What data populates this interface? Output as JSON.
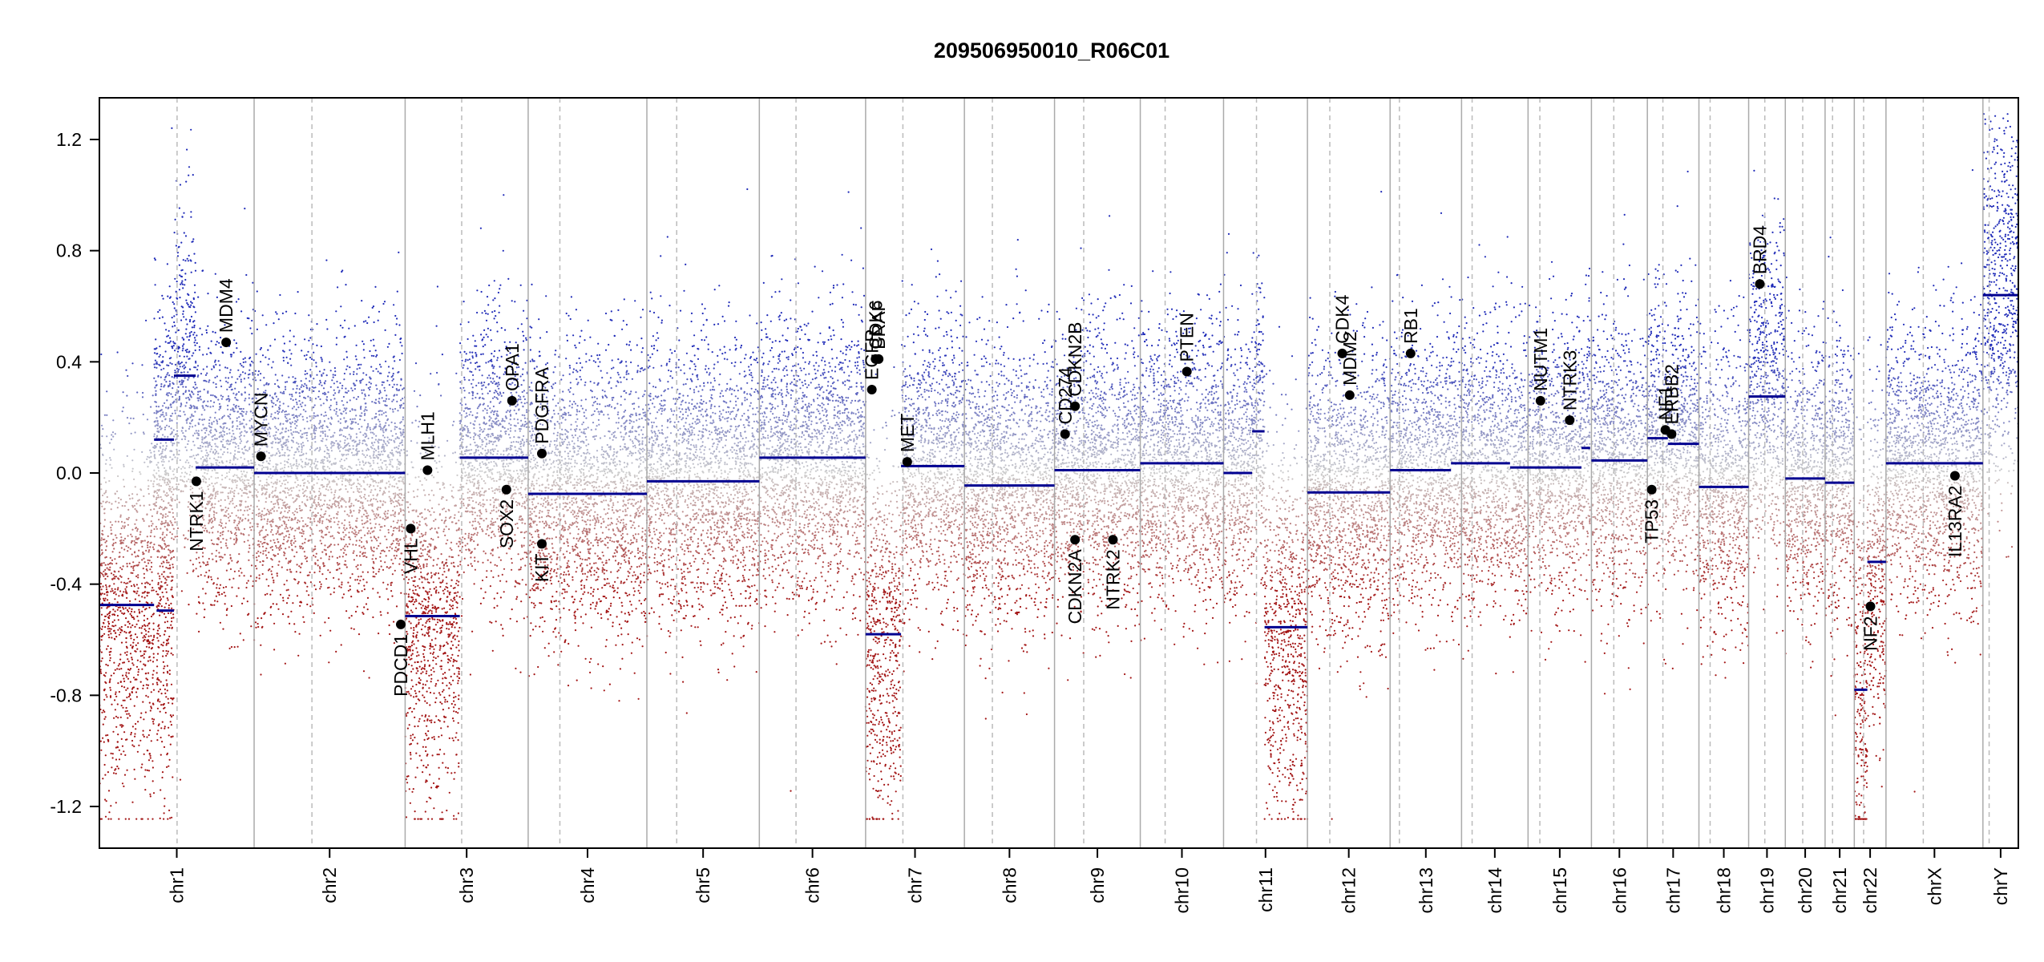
{
  "chart_data": {
    "type": "scatter",
    "title": "209506950010_R06C01",
    "ylim": [
      -1.35,
      1.35
    ],
    "yticks": [
      -1.2,
      -0.8,
      -0.4,
      0.0,
      0.4,
      0.8,
      1.2
    ],
    "ytick_labels": [
      "-1.2",
      "-0.8",
      "-0.4",
      "0.0",
      "0.4",
      "0.8",
      "1.2"
    ],
    "grid": false,
    "colors": {
      "gain": "#1f2bb8",
      "loss": "#a31515",
      "segment": "#000090",
      "separator": "#aaaaaa",
      "centromere": "#bbbbbb",
      "gene_point": "#000000"
    },
    "chromosomes": [
      {
        "name": "chr1",
        "span": [
          0,
          249
        ],
        "centromere": 125
      },
      {
        "name": "chr2",
        "span": [
          249,
          492
        ],
        "centromere": 342
      },
      {
        "name": "chr3",
        "span": [
          492,
          690
        ],
        "centromere": 583
      },
      {
        "name": "chr4",
        "span": [
          690,
          881
        ],
        "centromere": 741
      },
      {
        "name": "chr5",
        "span": [
          881,
          1062
        ],
        "centromere": 929
      },
      {
        "name": "chr6",
        "span": [
          1062,
          1233
        ],
        "centromere": 1121
      },
      {
        "name": "chr7",
        "span": [
          1233,
          1392
        ],
        "centromere": 1293
      },
      {
        "name": "chr8",
        "span": [
          1392,
          1537
        ],
        "centromere": 1437
      },
      {
        "name": "chr9",
        "span": [
          1537,
          1675
        ],
        "centromere": 1584
      },
      {
        "name": "chr10",
        "span": [
          1675,
          1809
        ],
        "centromere": 1715
      },
      {
        "name": "chr11",
        "span": [
          1809,
          1944
        ],
        "centromere": 1862
      },
      {
        "name": "chr12",
        "span": [
          1944,
          2077
        ],
        "centromere": 1980
      },
      {
        "name": "chr13",
        "span": [
          2077,
          2192
        ],
        "centromere": 2092
      },
      {
        "name": "chr14",
        "span": [
          2192,
          2299
        ],
        "centromere": 2209
      },
      {
        "name": "chr15",
        "span": [
          2299,
          2401
        ],
        "centromere": 2318
      },
      {
        "name": "chr16",
        "span": [
          2401,
          2491
        ],
        "centromere": 2437
      },
      {
        "name": "chr17",
        "span": [
          2491,
          2574
        ],
        "centromere": 2516
      },
      {
        "name": "chr18",
        "span": [
          2574,
          2654
        ],
        "centromere": 2592
      },
      {
        "name": "chr19",
        "span": [
          2654,
          2713
        ],
        "centromere": 2680
      },
      {
        "name": "chr20",
        "span": [
          2713,
          2777
        ],
        "centromere": 2741
      },
      {
        "name": "chr21",
        "span": [
          2777,
          2824
        ],
        "centromere": 2789
      },
      {
        "name": "chr22",
        "span": [
          2824,
          2875
        ],
        "centromere": 2839
      },
      {
        "name": "chrX",
        "span": [
          2875,
          3031
        ],
        "centromere": 2935
      },
      {
        "name": "chrY",
        "span": [
          3031,
          3088
        ],
        "centromere": 3041
      }
    ],
    "segments": [
      {
        "x": [
          0,
          88
        ],
        "y": -0.475
      },
      {
        "x": [
          88,
          120
        ],
        "y": 0.12
      },
      {
        "x": [
          92,
          120
        ],
        "y": -0.495
      },
      {
        "x": [
          120,
          155
        ],
        "y": 0.35
      },
      {
        "x": [
          155,
          249
        ],
        "y": 0.02
      },
      {
        "x": [
          249,
          492
        ],
        "y": 0.0
      },
      {
        "x": [
          492,
          580
        ],
        "y": -0.515
      },
      {
        "x": [
          580,
          690
        ],
        "y": 0.055
      },
      {
        "x": [
          690,
          881
        ],
        "y": -0.075
      },
      {
        "x": [
          881,
          1062
        ],
        "y": -0.03
      },
      {
        "x": [
          1062,
          1233
        ],
        "y": 0.055
      },
      {
        "x": [
          1233,
          1290
        ],
        "y": -0.58
      },
      {
        "x": [
          1290,
          1392
        ],
        "y": 0.025
      },
      {
        "x": [
          1392,
          1537
        ],
        "y": -0.045
      },
      {
        "x": [
          1537,
          1675
        ],
        "y": 0.01
      },
      {
        "x": [
          1675,
          1809
        ],
        "y": 0.035
      },
      {
        "x": [
          1809,
          1855
        ],
        "y": 0.0
      },
      {
        "x": [
          1855,
          1875
        ],
        "y": 0.15
      },
      {
        "x": [
          1875,
          1944
        ],
        "y": -0.555
      },
      {
        "x": [
          1944,
          2077
        ],
        "y": -0.07
      },
      {
        "x": [
          2077,
          2175
        ],
        "y": 0.01
      },
      {
        "x": [
          2175,
          2270
        ],
        "y": 0.035
      },
      {
        "x": [
          2270,
          2385
        ],
        "y": 0.02
      },
      {
        "x": [
          2385,
          2399
        ],
        "y": 0.09
      },
      {
        "x": [
          2401,
          2491
        ],
        "y": 0.045
      },
      {
        "x": [
          2491,
          2524
        ],
        "y": 0.125
      },
      {
        "x": [
          2524,
          2574
        ],
        "y": 0.105
      },
      {
        "x": [
          2574,
          2654
        ],
        "y": -0.05
      },
      {
        "x": [
          2654,
          2713
        ],
        "y": 0.275
      },
      {
        "x": [
          2713,
          2777
        ],
        "y": -0.02
      },
      {
        "x": [
          2777,
          2824
        ],
        "y": -0.035
      },
      {
        "x": [
          2824,
          2845
        ],
        "y": -0.78
      },
      {
        "x": [
          2845,
          2875
        ],
        "y": -0.32
      },
      {
        "x": [
          2875,
          3031
        ],
        "y": 0.035
      },
      {
        "x": [
          3031,
          3088
        ],
        "y": 0.64
      }
    ],
    "genes": [
      {
        "name": "MDM4",
        "x": 204,
        "y": 0.47,
        "label_side": "above"
      },
      {
        "name": "MYCN",
        "x": 260,
        "y": 0.06,
        "label_side": "above"
      },
      {
        "name": "NTRK1",
        "x": 156,
        "y": -0.03,
        "label_side": "below"
      },
      {
        "name": "MLH1",
        "x": 528,
        "y": 0.01,
        "label_side": "above"
      },
      {
        "name": "VHL",
        "x": 501,
        "y": -0.2,
        "label_side": "below"
      },
      {
        "name": "PDCD1",
        "x": 485,
        "y": -0.545,
        "label_side": "below"
      },
      {
        "name": "OPA1",
        "x": 664,
        "y": 0.26,
        "label_side": "above"
      },
      {
        "name": "SOX2",
        "x": 655,
        "y": -0.06,
        "label_side": "below"
      },
      {
        "name": "PDGFRA",
        "x": 712,
        "y": 0.07,
        "label_side": "above"
      },
      {
        "name": "KIT",
        "x": 712,
        "y": -0.255,
        "label_side": "below"
      },
      {
        "name": "EGFR",
        "x": 1243,
        "y": 0.3,
        "label_side": "above"
      },
      {
        "name": "CDK6",
        "x": 1249,
        "y": 0.41,
        "label_side": "above"
      },
      {
        "name": "BRAF",
        "x": 1254,
        "y": 0.41,
        "label_side": "above"
      },
      {
        "name": "MET",
        "x": 1300,
        "y": 0.04,
        "label_side": "above"
      },
      {
        "name": "CD274",
        "x": 1554,
        "y": 0.14,
        "label_side": "above"
      },
      {
        "name": "CDKN2B",
        "x": 1570,
        "y": 0.24,
        "label_side": "above"
      },
      {
        "name": "CDKN2A",
        "x": 1570,
        "y": -0.24,
        "label_side": "below"
      },
      {
        "name": "NTRK2",
        "x": 1631,
        "y": -0.24,
        "label_side": "below"
      },
      {
        "name": "PTEN",
        "x": 1750,
        "y": 0.365,
        "label_side": "above"
      },
      {
        "name": "MDM2",
        "x": 2012,
        "y": 0.28,
        "label_side": "above"
      },
      {
        "name": "CDK4",
        "x": 2000,
        "y": 0.43,
        "label_side": "above"
      },
      {
        "name": "RB1",
        "x": 2110,
        "y": 0.43,
        "label_side": "above"
      },
      {
        "name": "NUTM1",
        "x": 2319,
        "y": 0.26,
        "label_side": "above"
      },
      {
        "name": "NTRK3",
        "x": 2366,
        "y": 0.19,
        "label_side": "above"
      },
      {
        "name": "TP53",
        "x": 2498,
        "y": -0.06,
        "label_side": "below"
      },
      {
        "name": "NF1",
        "x": 2520,
        "y": 0.155,
        "label_side": "above"
      },
      {
        "name": "ERBB2",
        "x": 2530,
        "y": 0.14,
        "label_side": "above"
      },
      {
        "name": "BRD4",
        "x": 2672,
        "y": 0.68,
        "label_side": "above"
      },
      {
        "name": "NF2",
        "x": 2850,
        "y": -0.48,
        "label_side": "below"
      },
      {
        "name": "IL13RA2",
        "x": 2986,
        "y": -0.01,
        "label_side": "below"
      }
    ]
  }
}
